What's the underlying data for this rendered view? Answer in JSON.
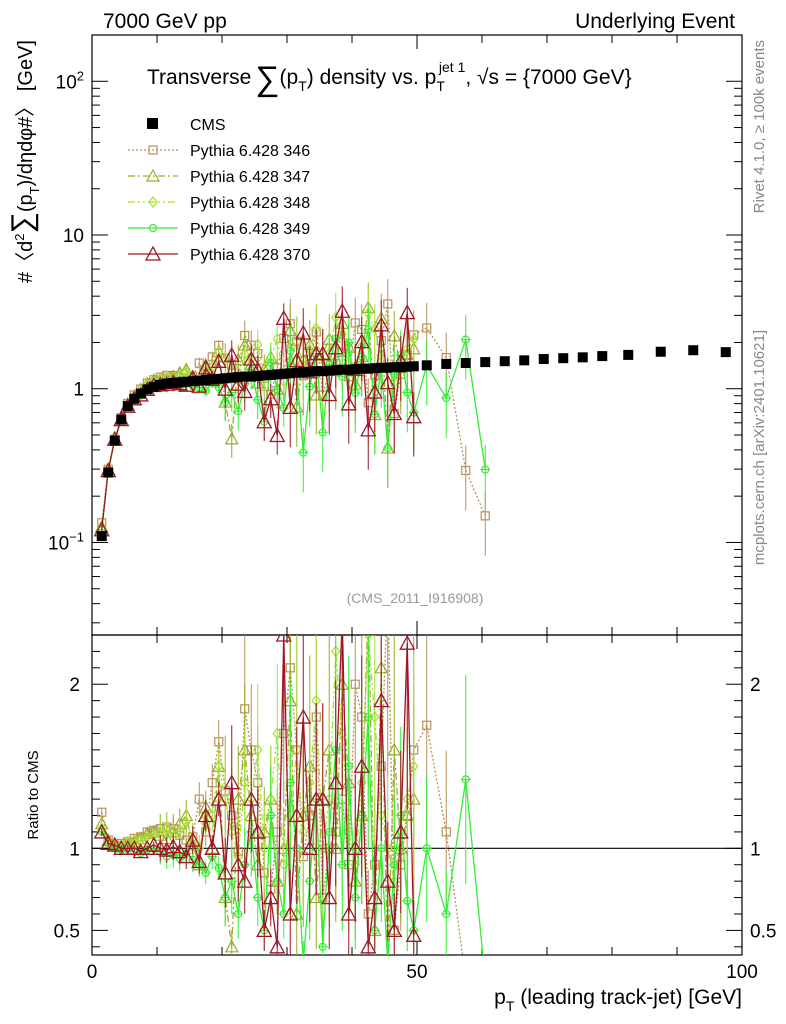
{
  "header": {
    "left": "7000 GeV pp",
    "right": "Underlying Event"
  },
  "side": {
    "rivet": "Rivet 4.1.0, ≥ 100k events",
    "mcplots": "mcplots.cern.ch [arXiv:2401.10621]"
  },
  "chart_data": {
    "type": "scatter",
    "title": "Transverse ∑(pT) density vs. pT^jet 1, √s = {7000 GeV}",
    "title_parts": {
      "a": "Transverse",
      "sum": "∑",
      "b": "(p",
      "b_sub": "T",
      "c": ") density vs. p",
      "c_sub": "T",
      "c_sup": "jet 1",
      "d": ", √s = {7000 GeV}"
    },
    "ylabel_parts": {
      "a": "#〈d",
      "a_sup": "2",
      "sum": "∑",
      "b": "(p",
      "b_sub": "T",
      "c": ")/dηdφ#〉 [GeV]"
    },
    "xlabel_parts": {
      "a": "p",
      "a_sub": "T",
      "b": " (leading track-jet) [GeV]"
    },
    "ratio_ylabel": "Ratio to CMS",
    "watermark": "(CMS_2011_I916908)",
    "xlim": [
      0,
      100
    ],
    "ylim": [
      0.025,
      200
    ],
    "ratio_ylim": [
      0.35,
      2.3
    ],
    "x_ticks": [
      "0",
      "50",
      "100"
    ],
    "y_ticks": [
      {
        "base": "10",
        "exp": "−1",
        "value": 0.1
      },
      {
        "base": "1",
        "exp": "",
        "value": 1
      },
      {
        "base": "10",
        "exp": "",
        "value": 10
      },
      {
        "base": "10",
        "exp": "2",
        "value": 100
      }
    ],
    "ratio_ticks": [
      "0.5",
      "1",
      "2"
    ],
    "legend": [
      "CMS",
      "Pythia 6.428 346",
      "Pythia 6.428 347",
      "Pythia 6.428 348",
      "Pythia 6.428 349",
      "Pythia 6.428 370"
    ],
    "colors": [
      "#000000",
      "#b8915a",
      "#9aab27",
      "#a6e034",
      "#33ee33",
      "#a01525"
    ],
    "x": [
      1.5,
      2.5,
      3.5,
      4.5,
      5.5,
      6.5,
      7.5,
      8.5,
      9.5,
      10.5,
      11.5,
      12.5,
      13.5,
      14.5,
      15.5,
      16.5,
      17.5,
      18.5,
      19.5,
      20.5,
      21.5,
      22.5,
      23.5,
      24.5,
      25.5,
      26.5,
      27.5,
      28.5,
      29.5,
      30.5,
      31.5,
      32.5,
      33.5,
      34.5,
      35.5,
      36.5,
      37.5,
      38.5,
      39.5,
      40.5,
      41.5,
      42.5,
      43.5,
      44.5,
      45.5,
      46.5,
      47.5,
      48.5,
      49.5,
      51.5,
      54.5,
      57.5,
      60.5,
      63.5,
      66.5,
      69.5,
      72.5,
      75.5,
      78.5,
      82.5,
      87.5,
      92.5,
      97.5
    ],
    "cms": [
      0.11,
      0.285,
      0.46,
      0.63,
      0.77,
      0.86,
      0.93,
      0.99,
      1.03,
      1.06,
      1.08,
      1.09,
      1.1,
      1.11,
      1.12,
      1.13,
      1.14,
      1.15,
      1.16,
      1.17,
      1.18,
      1.19,
      1.2,
      1.2,
      1.21,
      1.22,
      1.23,
      1.24,
      1.25,
      1.26,
      1.27,
      1.28,
      1.29,
      1.3,
      1.3,
      1.31,
      1.32,
      1.33,
      1.33,
      1.34,
      1.35,
      1.35,
      1.36,
      1.37,
      1.37,
      1.38,
      1.38,
      1.39,
      1.4,
      1.42,
      1.45,
      1.47,
      1.49,
      1.51,
      1.53,
      1.56,
      1.58,
      1.6,
      1.63,
      1.66,
      1.74,
      1.78,
      1.73
    ],
    "series": [
      {
        "name": "Pythia 6.428 346",
        "ratio": [
          1.22,
          1.05,
          1.02,
          1.03,
          1.04,
          1.06,
          1.07,
          1.1,
          1.11,
          1.12,
          1.13,
          1.12,
          1.08,
          1.05,
          1.07,
          1.3,
          1.1,
          1.4,
          1.65,
          1.35,
          1.2,
          0.98,
          1.85,
          1.6,
          1.4,
          0.85,
          0.75,
          1.1,
          1.7,
          2.1,
          1.6,
          0.95,
          1.2,
          1.8,
          0.7,
          1.0,
          1.1,
          1.3,
          0.9,
          2.0,
          1.8,
          0.6,
          0.9,
          1.5,
          2.6,
          0.5,
          0.9,
          1.2,
          1.6,
          1.75,
          1.1,
          0.2,
          0.1
        ]
      },
      {
        "name": "Pythia 6.428 347",
        "ratio": [
          1.15,
          1.05,
          1.02,
          1.01,
          1.03,
          1.04,
          1.06,
          1.09,
          1.1,
          1.08,
          1.06,
          1.1,
          1.15,
          1.2,
          1.02,
          0.9,
          1.25,
          1.0,
          1.5,
          0.7,
          0.4,
          1.3,
          1.6,
          1.2,
          0.9,
          1.1,
          1.3,
          0.8,
          1.0,
          1.9,
          0.6,
          1.2,
          1.5,
          0.7,
          1.3,
          1.6,
          1.0,
          2.0,
          1.4,
          0.8,
          1.2,
          2.5,
          0.5,
          2.1,
          0.3,
          1.6,
          1.0,
          1.2,
          1.3
        ]
      },
      {
        "name": "Pythia 6.428 348",
        "ratio": [
          1.12,
          1.04,
          1.03,
          1.02,
          1.04,
          1.05,
          1.05,
          1.07,
          1.08,
          1.1,
          1.12,
          1.07,
          1.11,
          1.16,
          1.06,
          1.0,
          1.15,
          1.2,
          1.5,
          1.3,
          1.1,
          0.95,
          1.4,
          1.3,
          1.6,
          1.0,
          1.3,
          1.7,
          0.9,
          1.2,
          1.6,
          1.1,
          1.4,
          1.9,
          1.0,
          1.3,
          2.2,
          1.7,
          1.1,
          0.9,
          1.4,
          2.3,
          1.8,
          1.2,
          1.0,
          0.8,
          1.1,
          1.3,
          1.5
        ]
      },
      {
        "name": "Pythia 6.428 349",
        "ratio": [
          1.1,
          1.03,
          1.0,
          0.99,
          1.0,
          0.98,
          0.97,
          0.99,
          1.0,
          0.98,
          0.95,
          0.96,
          0.94,
          0.97,
          0.93,
          0.9,
          0.85,
          0.95,
          0.88,
          0.7,
          0.8,
          0.6,
          0.9,
          1.1,
          0.7,
          0.5,
          1.2,
          0.8,
          0.6,
          1.4,
          1.0,
          0.3,
          0.8,
          1.3,
          0.4,
          1.1,
          1.6,
          0.9,
          1.5,
          0.7,
          1.2,
          1.8,
          0.5,
          1.0,
          0.3,
          0.9,
          1.2,
          0.68,
          0.5,
          1.0,
          0.6,
          1.42,
          0.2
        ]
      },
      {
        "name": "Pythia 6.428 370",
        "ratio": [
          1.1,
          1.03,
          1.02,
          1.0,
          1.0,
          1.0,
          0.98,
          1.0,
          1.02,
          1.0,
          0.99,
          1.01,
          0.98,
          0.95,
          1.05,
          0.92,
          1.2,
          1.0,
          1.3,
          0.85,
          1.4,
          0.9,
          0.8,
          1.3,
          1.1,
          0.5,
          0.7,
          0.4,
          2.3,
          0.6,
          1.2,
          1.8,
          1.0,
          1.3,
          1.3,
          0.7,
          1.4,
          2.4,
          0.6,
          1.0,
          1.5,
          0.4,
          0.7,
          1.9,
          0.8,
          0.5,
          1.1,
          2.25,
          0.47
        ]
      }
    ]
  }
}
